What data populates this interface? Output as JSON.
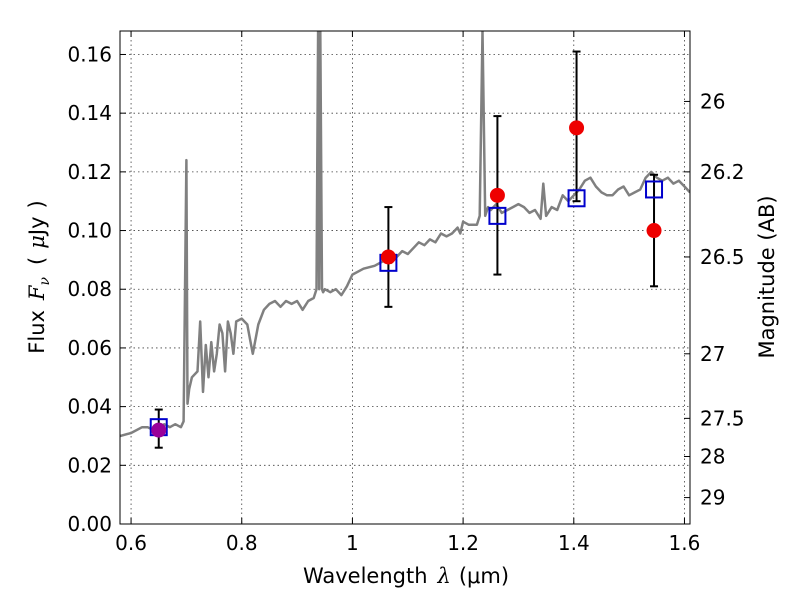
{
  "chart_data": {
    "type": "scatter",
    "title": "",
    "xlabel": "Wavelength  λ (μm)",
    "ylabel": "Flux  Fν  ( μJy )",
    "ylabel_parts": {
      "prefix": "Flux",
      "sym": "F",
      "sub": "ν",
      "open": "(",
      "mu": "μ",
      "unit": "Jy",
      "close": ")"
    },
    "xlabel_parts": {
      "prefix": "Wavelength",
      "sym": "λ",
      "unit": "(μm)"
    },
    "y2label": "Magnitude (AB)",
    "xlim": [
      0.58,
      1.61
    ],
    "ylim": [
      0.0,
      0.168
    ],
    "grid": true,
    "xticks": [
      0.6,
      0.8,
      1.0,
      1.2,
      1.4,
      1.6
    ],
    "xtick_labels": [
      "0.6",
      "0.8",
      "1",
      "1.2",
      "1.4",
      "1.6"
    ],
    "yticks": [
      0.0,
      0.02,
      0.04,
      0.06,
      0.08,
      0.1,
      0.12,
      0.14,
      0.16
    ],
    "ytick_labels": [
      "0.00",
      "0.02",
      "0.04",
      "0.06",
      "0.08",
      "0.10",
      "0.12",
      "0.14",
      "0.16"
    ],
    "y2ticks": [
      {
        "label": "26",
        "flux": 0.144
      },
      {
        "label": "26.2",
        "flux": 0.12
      },
      {
        "label": "26.5",
        "flux": 0.091
      },
      {
        "label": "27",
        "flux": 0.058
      },
      {
        "label": "27.5",
        "flux": 0.036
      },
      {
        "label": "28",
        "flux": 0.023
      },
      {
        "label": "29",
        "flux": 0.009
      }
    ],
    "series": [
      {
        "kind": "model_spectrum",
        "color": "#808080",
        "x": [
          0.58,
          0.6,
          0.62,
          0.63,
          0.64,
          0.65,
          0.66,
          0.67,
          0.68,
          0.69,
          0.695,
          0.7,
          0.702,
          0.705,
          0.71,
          0.72,
          0.725,
          0.73,
          0.735,
          0.74,
          0.745,
          0.75,
          0.755,
          0.76,
          0.765,
          0.77,
          0.775,
          0.78,
          0.785,
          0.79,
          0.8,
          0.81,
          0.815,
          0.82,
          0.83,
          0.84,
          0.85,
          0.86,
          0.87,
          0.88,
          0.89,
          0.9,
          0.91,
          0.92,
          0.93,
          0.935,
          0.938,
          0.94,
          0.942,
          0.945,
          0.947,
          0.95,
          0.96,
          0.97,
          0.98,
          0.99,
          1.0,
          1.02,
          1.04,
          1.06,
          1.07,
          1.08,
          1.09,
          1.1,
          1.11,
          1.12,
          1.13,
          1.14,
          1.15,
          1.16,
          1.17,
          1.18,
          1.19,
          1.195,
          1.2,
          1.21,
          1.22,
          1.225,
          1.23,
          1.235,
          1.24,
          1.245,
          1.25,
          1.26,
          1.27,
          1.28,
          1.29,
          1.3,
          1.31,
          1.32,
          1.33,
          1.34,
          1.345,
          1.35,
          1.36,
          1.37,
          1.38,
          1.39,
          1.4,
          1.41,
          1.42,
          1.43,
          1.44,
          1.45,
          1.46,
          1.47,
          1.48,
          1.49,
          1.5,
          1.51,
          1.52,
          1.53,
          1.54,
          1.55,
          1.56,
          1.57,
          1.58,
          1.59,
          1.6,
          1.61
        ],
        "y": [
          0.03,
          0.031,
          0.033,
          0.033,
          0.032,
          0.033,
          0.034,
          0.033,
          0.034,
          0.033,
          0.035,
          0.124,
          0.041,
          0.046,
          0.05,
          0.052,
          0.069,
          0.045,
          0.061,
          0.05,
          0.062,
          0.052,
          0.058,
          0.068,
          0.065,
          0.052,
          0.069,
          0.065,
          0.058,
          0.069,
          0.07,
          0.068,
          0.063,
          0.058,
          0.068,
          0.073,
          0.075,
          0.076,
          0.074,
          0.076,
          0.075,
          0.076,
          0.073,
          0.076,
          0.077,
          0.08,
          0.168,
          0.08,
          0.168,
          0.08,
          0.079,
          0.08,
          0.079,
          0.08,
          0.078,
          0.081,
          0.085,
          0.087,
          0.088,
          0.09,
          0.089,
          0.091,
          0.093,
          0.092,
          0.094,
          0.096,
          0.095,
          0.097,
          0.096,
          0.099,
          0.098,
          0.099,
          0.101,
          0.099,
          0.103,
          0.102,
          0.102,
          0.102,
          0.105,
          0.168,
          0.105,
          0.108,
          0.107,
          0.109,
          0.106,
          0.107,
          0.108,
          0.109,
          0.108,
          0.106,
          0.107,
          0.104,
          0.116,
          0.105,
          0.108,
          0.107,
          0.112,
          0.11,
          0.112,
          0.114,
          0.117,
          0.118,
          0.115,
          0.113,
          0.112,
          0.112,
          0.114,
          0.115,
          0.112,
          0.113,
          0.114,
          0.118,
          0.12,
          0.118,
          0.117,
          0.118,
          0.116,
          0.117,
          0.115,
          0.113
        ]
      },
      {
        "kind": "model_photometry",
        "color": "#0000cc",
        "x": [
          0.65,
          1.065,
          1.262,
          1.405,
          1.545
        ],
        "y": [
          0.033,
          0.089,
          0.105,
          0.111,
          0.114
        ]
      },
      {
        "kind": "observed",
        "color": "#ee0000",
        "first_color": "#990099",
        "x": [
          0.65,
          1.065,
          1.262,
          1.405,
          1.545
        ],
        "y": [
          0.032,
          0.091,
          0.112,
          0.135,
          0.1
        ],
        "yerr_low": [
          0.026,
          0.074,
          0.085,
          0.11,
          0.081
        ],
        "yerr_high": [
          0.039,
          0.108,
          0.139,
          0.161,
          0.119
        ]
      }
    ]
  }
}
